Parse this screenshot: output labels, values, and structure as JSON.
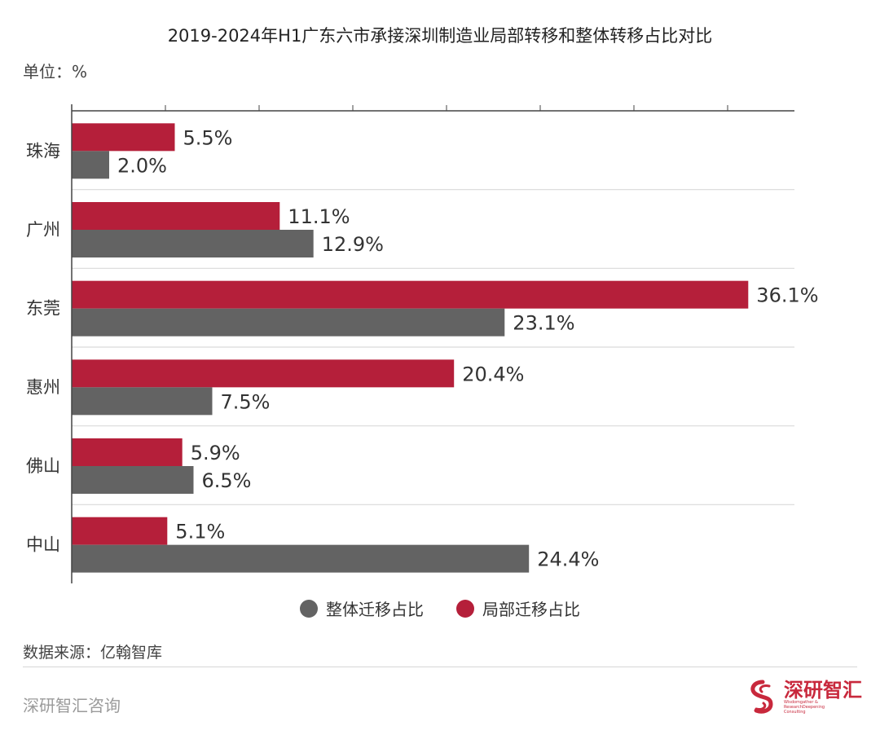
{
  "header": {
    "title": "2019-2024年H1广东六市承接深圳制造业局部转移和整体转移占比对比",
    "unit": "单位：%"
  },
  "legend": {
    "whole_label": "整体迁移占比",
    "partial_label": "局部迁移占比"
  },
  "footer": {
    "source": "数据来源：亿翰智库",
    "brand": "深研智汇咨询",
    "logo_name": "深研智汇",
    "logo_sub_line1": "Wisdomgather &",
    "logo_sub_line2": "ResearchDeepening",
    "logo_sub_line3": "Consulting"
  },
  "colors": {
    "partial": "#b51f3a",
    "whole": "#636363",
    "grid": "#d9d9d9",
    "axis": "#444444"
  },
  "chart_data": {
    "type": "bar",
    "orientation": "horizontal",
    "categories": [
      "珠海",
      "广州",
      "东莞",
      "惠州",
      "佛山",
      "中山"
    ],
    "series": [
      {
        "name": "局部迁移占比",
        "values": [
          5.5,
          11.1,
          36.1,
          20.4,
          5.9,
          5.1
        ]
      },
      {
        "name": "整体迁移占比",
        "values": [
          2.0,
          12.9,
          23.1,
          7.5,
          6.5,
          24.4
        ]
      }
    ],
    "data_labels": [
      [
        "5.5%",
        "11.1%",
        "36.1%",
        "20.4%",
        "5.9%",
        "5.1%"
      ],
      [
        "2.0%",
        "12.9%",
        "23.1%",
        "7.5%",
        "6.5%",
        "24.4%"
      ]
    ],
    "xlim": [
      0,
      38
    ],
    "grid": true,
    "legend_position": "bottom"
  }
}
